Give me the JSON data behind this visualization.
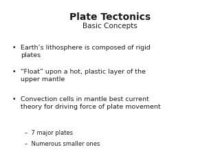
{
  "title": "Plate Tectonics",
  "subtitle": "Basic Concepts",
  "title_fontsize": 10,
  "subtitle_fontsize": 7.5,
  "bullet_fontsize": 6.8,
  "sub_bullet_fontsize": 6.0,
  "background_color": "#ffffff",
  "text_color": "#1a1a1a",
  "bullets": [
    "Earth’s lithosphere is composed of rigid\nplates",
    "“Float” upon a hot, plastic layer of the\nupper mantle",
    "Convection cells in mantle best current\ntheory for driving force of plate movement"
  ],
  "sub_bullets": [
    "7 major plates",
    "Numerous smaller ones"
  ]
}
